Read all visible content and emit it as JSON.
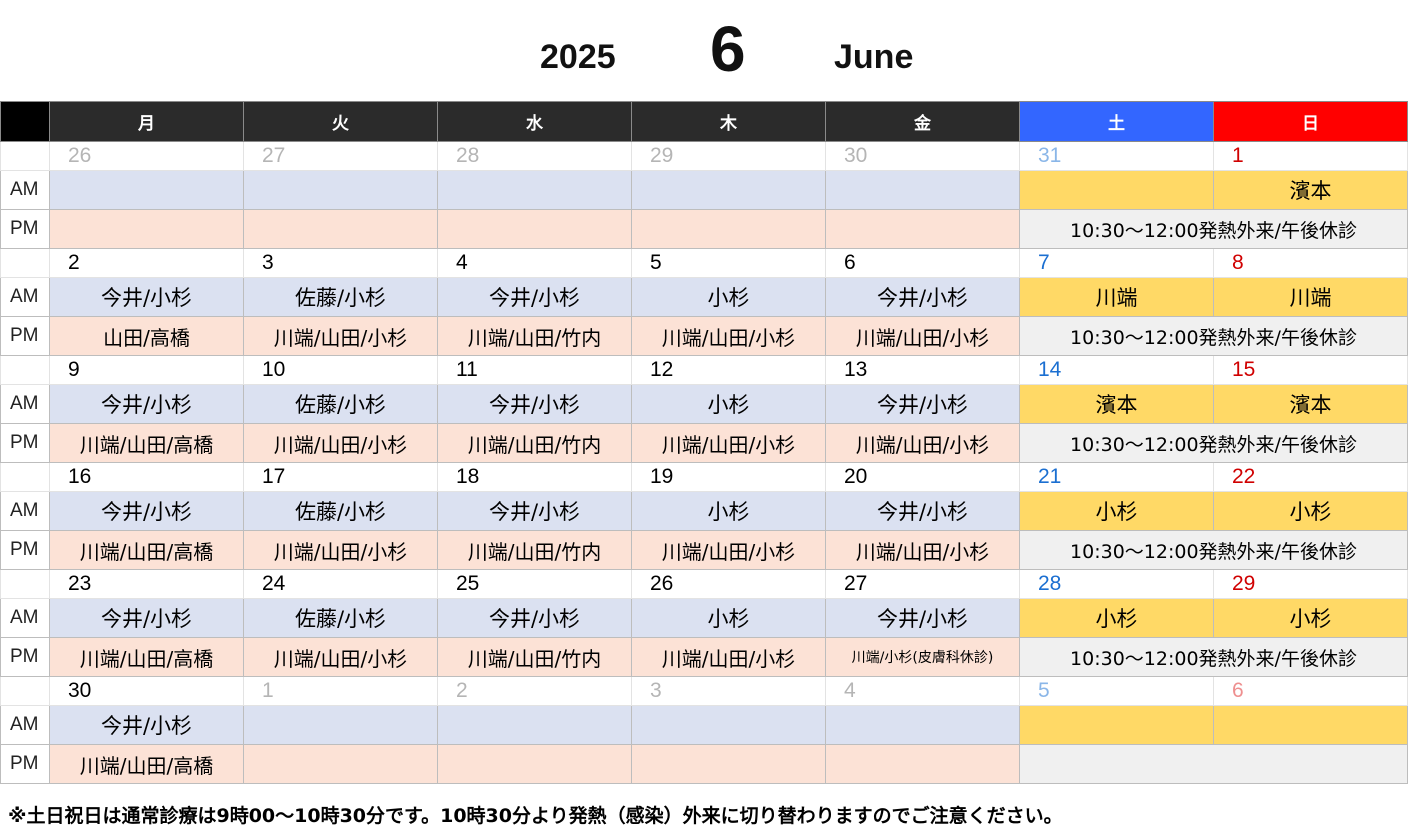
{
  "header": {
    "year": "2025",
    "month": "6",
    "month_name": "June"
  },
  "weekdays": [
    "月",
    "火",
    "水",
    "木",
    "金",
    "土",
    "日"
  ],
  "row_labels": {
    "am": "AM",
    "pm": "PM"
  },
  "weeks": [
    {
      "dates": [
        "26",
        "27",
        "28",
        "29",
        "30",
        "31",
        "1"
      ],
      "am": [
        "",
        "",
        "",
        "",
        "",
        "",
        "濱本"
      ],
      "pm": [
        "",
        "",
        "",
        "",
        "",
        "10:30～12:00発熱外来/午後休診"
      ]
    },
    {
      "dates": [
        "2",
        "3",
        "4",
        "5",
        "6",
        "7",
        "8"
      ],
      "am": [
        "今井/小杉",
        "佐藤/小杉",
        "今井/小杉",
        "小杉",
        "今井/小杉",
        "川端",
        "川端"
      ],
      "pm": [
        "山田/高橋",
        "川端/山田/小杉",
        "川端/山田/竹内",
        "川端/山田/小杉",
        "川端/山田/小杉",
        "10:30～12:00発熱外来/午後休診"
      ]
    },
    {
      "dates": [
        "9",
        "10",
        "11",
        "12",
        "13",
        "14",
        "15"
      ],
      "am": [
        "今井/小杉",
        "佐藤/小杉",
        "今井/小杉",
        "小杉",
        "今井/小杉",
        "濱本",
        "濱本"
      ],
      "pm": [
        "川端/山田/高橋",
        "川端/山田/小杉",
        "川端/山田/竹内",
        "川端/山田/小杉",
        "川端/山田/小杉",
        "10:30～12:00発熱外来/午後休診"
      ]
    },
    {
      "dates": [
        "16",
        "17",
        "18",
        "19",
        "20",
        "21",
        "22"
      ],
      "am": [
        "今井/小杉",
        "佐藤/小杉",
        "今井/小杉",
        "小杉",
        "今井/小杉",
        "小杉",
        "小杉"
      ],
      "pm": [
        "川端/山田/高橋",
        "川端/山田/小杉",
        "川端/山田/竹内",
        "川端/山田/小杉",
        "川端/山田/小杉",
        "10:30～12:00発熱外来/午後休診"
      ]
    },
    {
      "dates": [
        "23",
        "24",
        "25",
        "26",
        "27",
        "28",
        "29"
      ],
      "am": [
        "今井/小杉",
        "佐藤/小杉",
        "今井/小杉",
        "小杉",
        "今井/小杉",
        "小杉",
        "小杉"
      ],
      "pm": [
        "川端/山田/高橋",
        "川端/山田/小杉",
        "川端/山田/竹内",
        "川端/山田/小杉",
        "川端/小杉(皮膚科休診)",
        "10:30～12:00発熱外来/午後休診"
      ]
    },
    {
      "dates": [
        "30",
        "1",
        "2",
        "3",
        "4",
        "5",
        "6"
      ],
      "am": [
        "今井/小杉",
        "",
        "",
        "",
        "",
        "",
        ""
      ],
      "pm": [
        "川端/山田/高橋",
        "",
        "",
        "",
        "",
        ""
      ]
    }
  ],
  "footer_note": "※土日祝日は通常診療は9時00～10時30分です。10時30分より発熱（感染）外来に切り替わりますのでご注意ください。",
  "colors": {
    "am_bg": "#dbe1f1",
    "pm_bg": "#fce2d6",
    "weekend_am": "#ffd966",
    "saturday": "#3366ff",
    "sunday": "#ff0000",
    "header_bg": "#2b2b2b"
  }
}
